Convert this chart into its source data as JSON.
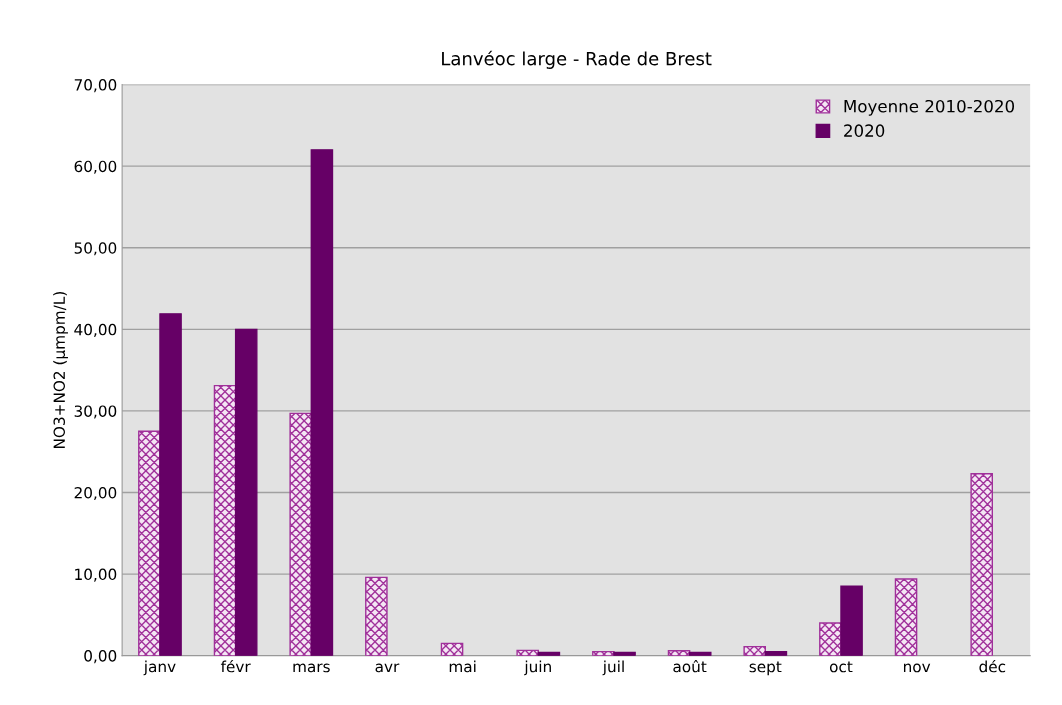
{
  "chart_data": {
    "type": "bar",
    "title": "Lanvéoc large - Rade de Brest",
    "ylabel": "NO3+NO2 (µmpm/L)",
    "categories": [
      "janv",
      "févr",
      "mars",
      "avr",
      "mai",
      "juin",
      "juil",
      "août",
      "sept",
      "oct",
      "nov",
      "déc"
    ],
    "series": [
      {
        "name": "Moyenne 2010-2020",
        "color": "#a0309a",
        "values": [
          27.5,
          33.1,
          29.7,
          9.6,
          1.5,
          0.65,
          0.5,
          0.6,
          1.1,
          4.0,
          9.4,
          22.3
        ]
      },
      {
        "name": "2020",
        "color": "#660066",
        "values": [
          41.9,
          40.0,
          62.0,
          null,
          null,
          0.4,
          0.4,
          0.4,
          0.5,
          8.5,
          null,
          null
        ]
      }
    ],
    "ylim": [
      0,
      70
    ],
    "yticks": [
      {
        "value": 0,
        "label": "0,00"
      },
      {
        "value": 10,
        "label": "10,00"
      },
      {
        "value": 20,
        "label": "20,00"
      },
      {
        "value": 30,
        "label": "30,00"
      },
      {
        "value": 40,
        "label": "40,00"
      },
      {
        "value": 50,
        "label": "50,00"
      },
      {
        "value": 60,
        "label": "60,00"
      },
      {
        "value": 70,
        "label": "70,00"
      }
    ],
    "grid": "y",
    "legend": "top right"
  }
}
